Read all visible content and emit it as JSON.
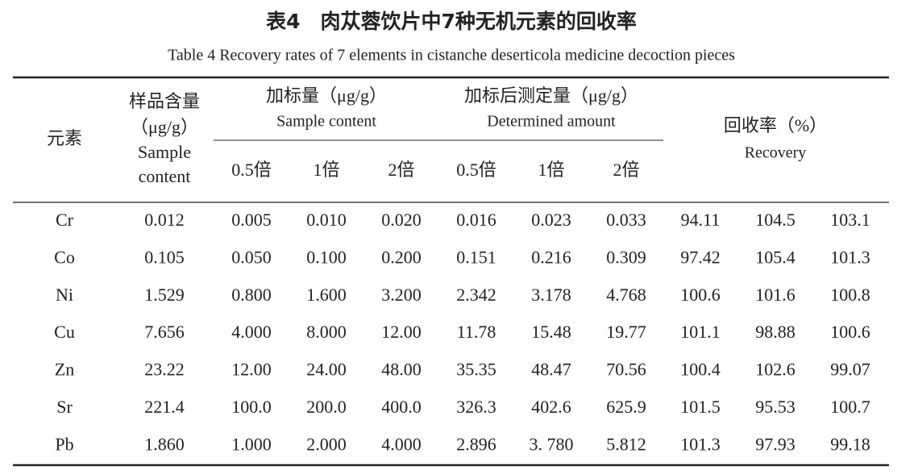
{
  "header": {
    "title": "表4　肉苁蓉饮片中7种无机元素的回收率",
    "subtitle": "Table 4 Recovery rates of 7 elements in cistanche deserticola medicine decoction pieces"
  },
  "table": {
    "columns": {
      "element": "元素",
      "sample": [
        "样品含量",
        "（μg/g）",
        "Sample",
        "content"
      ],
      "spiked": [
        "加标量（μg/g）",
        "Sample content"
      ],
      "determined": [
        "加标后测定量（μg/g）",
        "Determined amount"
      ],
      "recovery": [
        "回收率（%）",
        "Recovery"
      ],
      "multiples": [
        "0.5倍",
        "1倍",
        "2倍",
        "0.5倍",
        "1倍",
        "2倍"
      ]
    },
    "rows": [
      [
        "Cr",
        "0.012",
        "0.005",
        "0.010",
        "0.020",
        "0.016",
        "0.023",
        "0.033",
        "94.11",
        "104.5",
        "103.1"
      ],
      [
        "Co",
        "0.105",
        "0.050",
        "0.100",
        "0.200",
        "0.151",
        "0.216",
        "0.309",
        "97.42",
        "105.4",
        "101.3"
      ],
      [
        "Ni",
        "1.529",
        "0.800",
        "1.600",
        "3.200",
        "2.342",
        "3.178",
        "4.768",
        "100.6",
        "101.6",
        "100.8"
      ],
      [
        "Cu",
        "7.656",
        "4.000",
        "8.000",
        "12.00",
        "11.78",
        "15.48",
        "19.77",
        "101.1",
        "98.88",
        "100.6"
      ],
      [
        "Zn",
        "23.22",
        "12.00",
        "24.00",
        "48.00",
        "35.35",
        "48.47",
        "70.56",
        "100.4",
        "102.6",
        "99.07"
      ],
      [
        "Sr",
        "221.4",
        "100.0",
        "200.0",
        "400.0",
        "326.3",
        "402.6",
        "625.9",
        "101.5",
        "95.53",
        "100.7"
      ],
      [
        "Pb",
        "1.860",
        "1.000",
        "2.000",
        "4.000",
        "2.896",
        "3. 780",
        "5.812",
        "101.3",
        "97.93",
        "99.18"
      ]
    ]
  }
}
